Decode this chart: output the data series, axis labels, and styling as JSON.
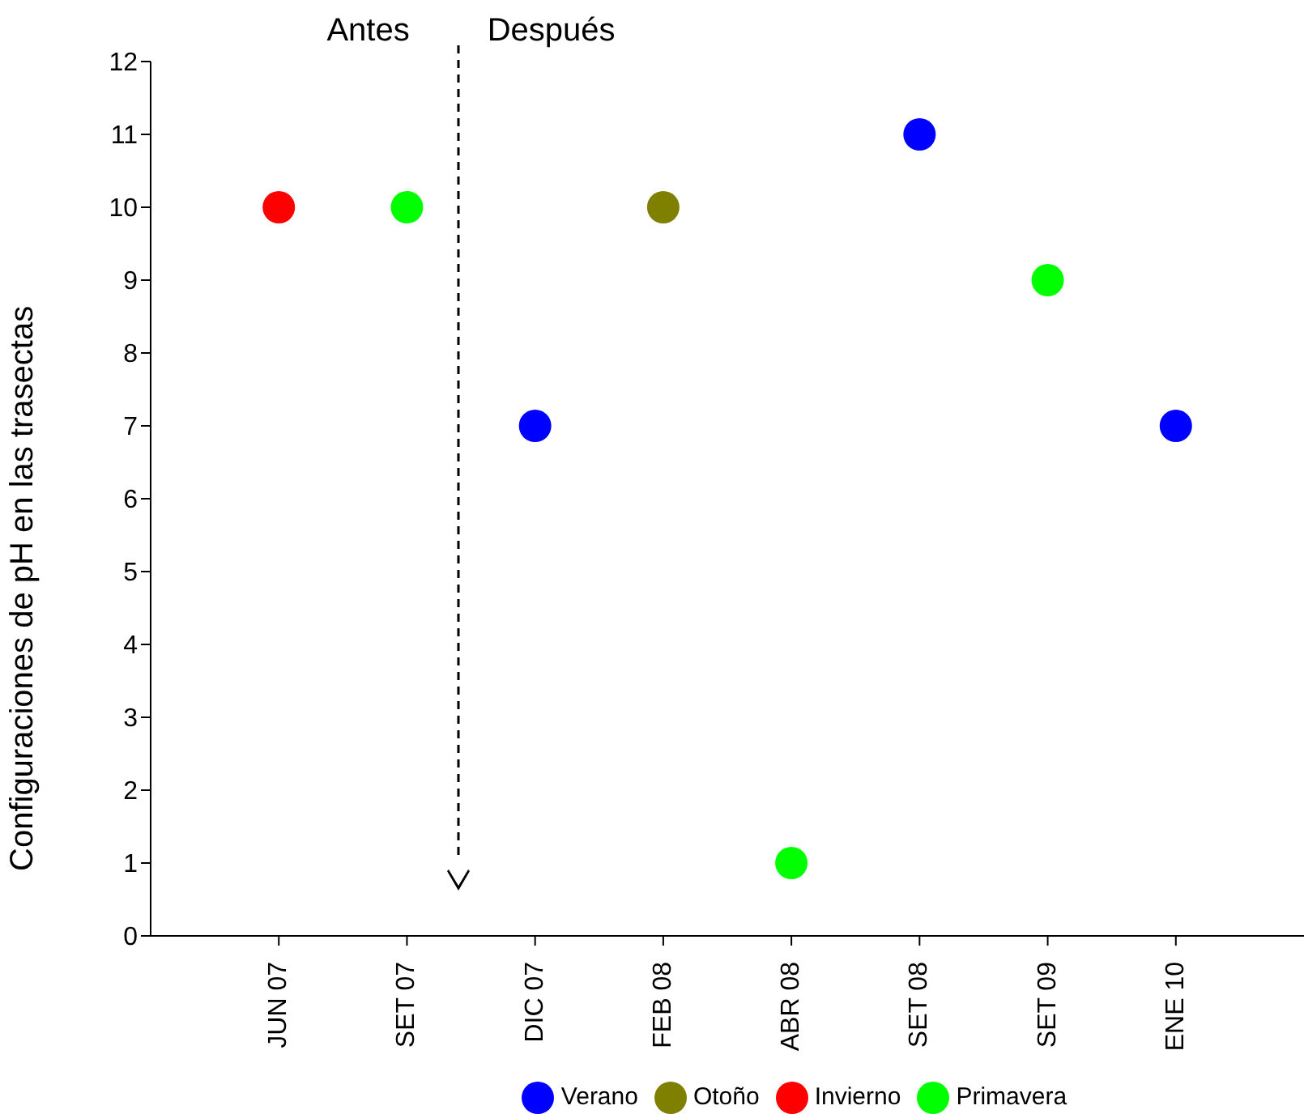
{
  "chart_data": {
    "type": "scatter",
    "ylabel": "Configuraciones de pH en las trasectas",
    "categories": [
      "JUN 07",
      "SET 07",
      "DIC 07",
      "FEB 08",
      "ABR 08",
      "SET 08",
      "SET 09",
      "ENE 10"
    ],
    "series": [
      {
        "name": "Verano",
        "color": "#0000ff",
        "values": [
          null,
          null,
          7,
          null,
          null,
          11,
          null,
          7
        ]
      },
      {
        "name": "Otoño",
        "color": "#808000",
        "values": [
          null,
          null,
          null,
          10,
          null,
          null,
          null,
          null
        ]
      },
      {
        "name": "Invierno",
        "color": "#ff0000",
        "values": [
          10,
          null,
          null,
          null,
          null,
          null,
          null,
          null
        ]
      },
      {
        "name": "Primavera",
        "color": "#00ff00",
        "values": [
          null,
          10,
          null,
          null,
          1,
          null,
          9,
          null
        ]
      }
    ],
    "ylim": [
      0,
      12
    ],
    "yticks": [
      0,
      1,
      2,
      3,
      4,
      5,
      6,
      7,
      8,
      9,
      10,
      11,
      12
    ],
    "grid": false,
    "legend": "bottom",
    "marker": "circle",
    "annotations": [
      "Antes",
      "Después"
    ]
  }
}
